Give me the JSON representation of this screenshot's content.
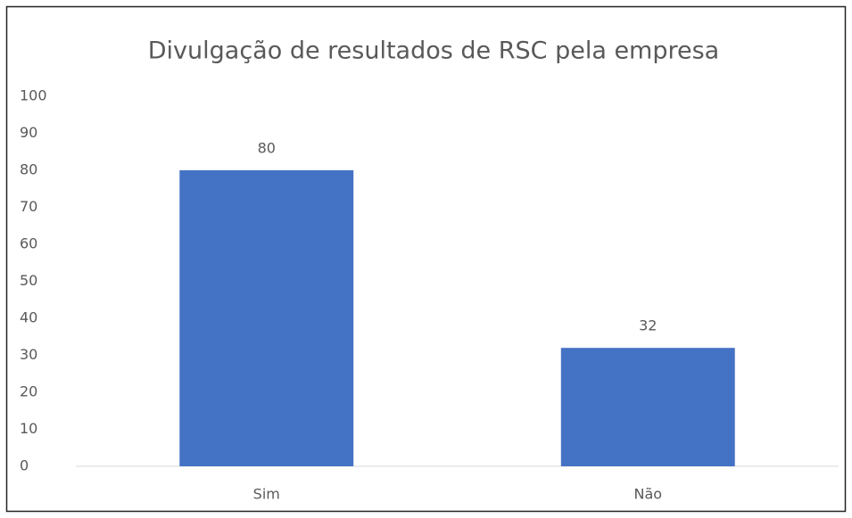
{
  "chart_data": {
    "type": "bar",
    "title": "Divulgação de resultados de RSC pela empresa",
    "categories": [
      "Sim",
      "Não"
    ],
    "values": [
      80,
      32
    ],
    "color": "#4472c4",
    "ylim": [
      0,
      100
    ],
    "yticks": [
      0,
      10,
      20,
      30,
      40,
      50,
      60,
      70,
      80,
      90,
      100
    ],
    "grid": false
  }
}
